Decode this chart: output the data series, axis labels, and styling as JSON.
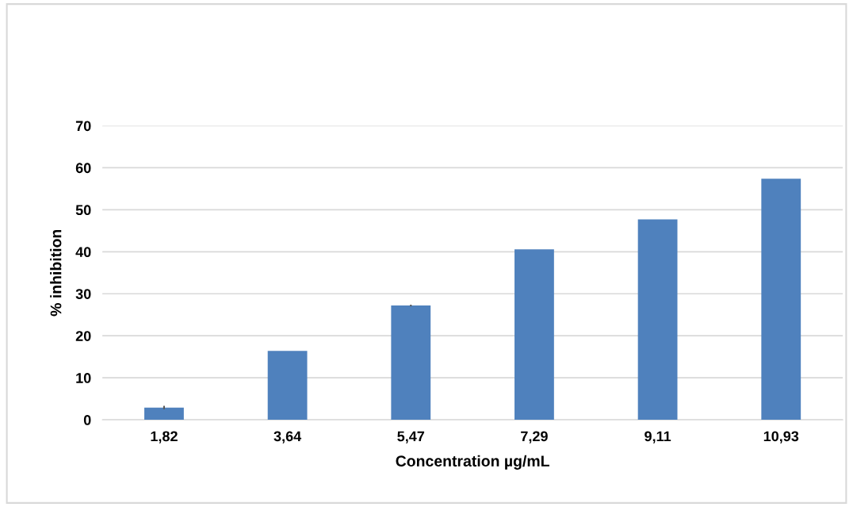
{
  "chart_data": {
    "type": "bar",
    "xlabel": "Concentration µg/mL",
    "ylabel": "% inhibition",
    "categories": [
      "1,82",
      "3,64",
      "5,47",
      "7,29",
      "9,11",
      "10,93"
    ],
    "values": [
      2.9,
      16.4,
      27.2,
      40.6,
      47.7,
      57.4
    ],
    "errors": [
      0.4,
      null,
      0.2,
      null,
      null,
      null
    ],
    "color": "#4f81bd",
    "ylim": [
      0,
      70
    ],
    "yticks": [
      0,
      10,
      20,
      30,
      40,
      50,
      60,
      70
    ],
    "grid": "y"
  }
}
